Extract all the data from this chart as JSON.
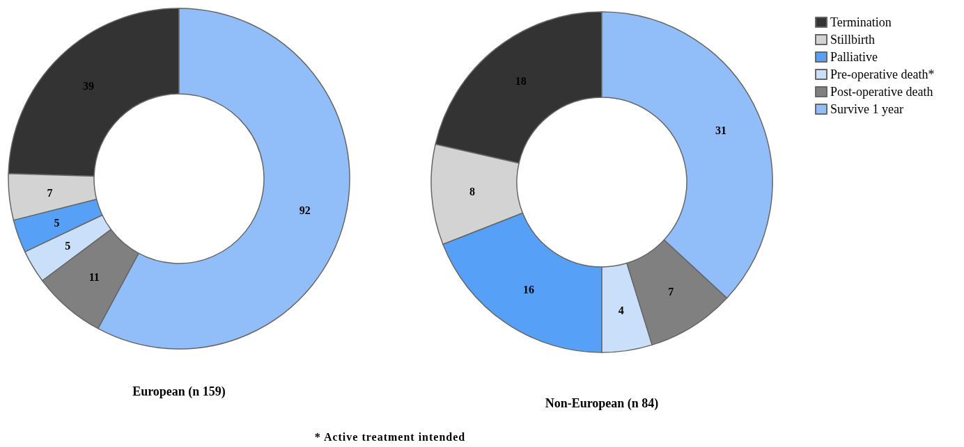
{
  "chart_data": {
    "type": "donut",
    "categories": [
      "Termination",
      "Stillbirth",
      "Palliative",
      "Pre-operative death*",
      "Post-operative death",
      "Survive 1 year"
    ],
    "colors": [
      "#333333",
      "#d3d3d3",
      "#56a0f8",
      "#c9dffa",
      "#808080",
      "#91bdf8"
    ],
    "series": [
      {
        "name": "European (n 159)",
        "values": [
          39,
          7,
          5,
          5,
          11,
          92
        ]
      },
      {
        "name": "Non-European (n 84)",
        "values": [
          18,
          8,
          16,
          4,
          7,
          31
        ]
      }
    ],
    "data_labels": true,
    "legend": "top right",
    "annotations": [
      "* Active treatment intended"
    ]
  }
}
